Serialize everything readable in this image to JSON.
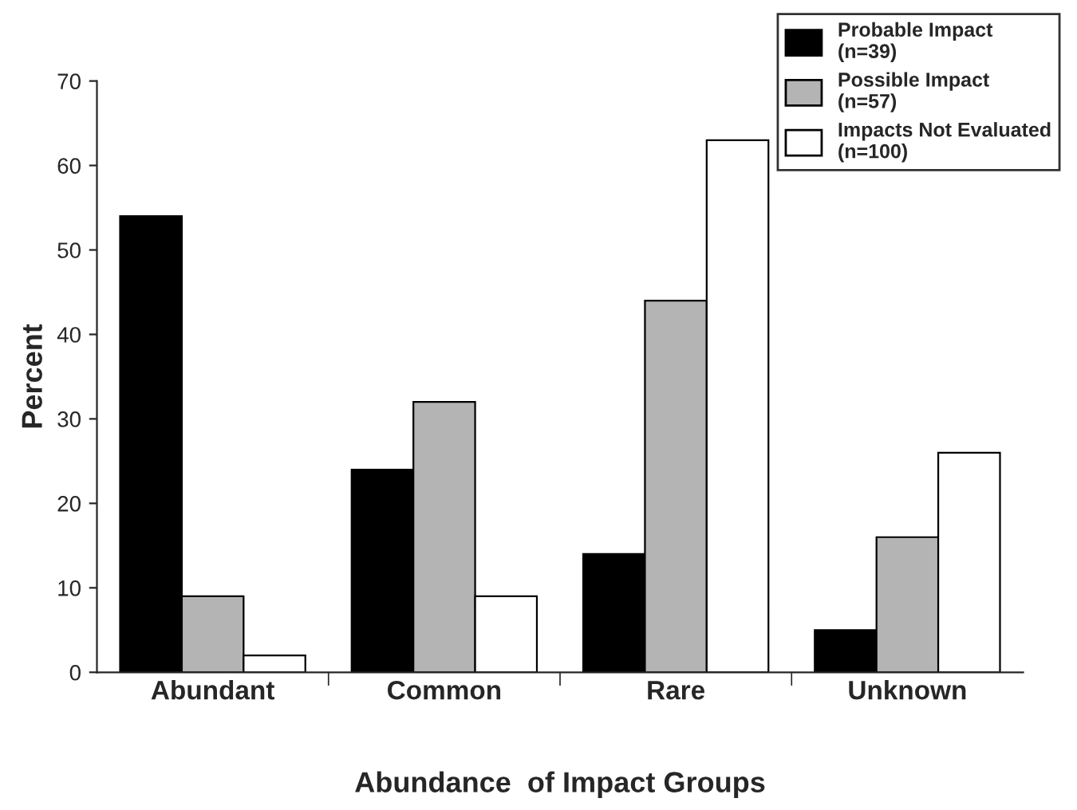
{
  "chart_data": {
    "type": "bar",
    "xlabel": "Abundance  of Impact Groups",
    "ylabel": "Percent",
    "categories": [
      "Abundant",
      "Common",
      "Rare",
      "Unknown"
    ],
    "series": [
      {
        "name": "Probable Impact\n(n=39)",
        "color": "#000000",
        "values": [
          54,
          24,
          14,
          5
        ]
      },
      {
        "name": "Possible Impact\n(n=57)",
        "color": "#b4b4b4",
        "values": [
          9,
          32,
          44,
          16
        ]
      },
      {
        "name": "Impacts Not Evaluated\n(n=100)",
        "color": "#ffffff",
        "values": [
          2,
          9,
          63,
          26
        ]
      }
    ],
    "ylim": [
      0,
      70
    ],
    "yticks": [
      0,
      10,
      20,
      30,
      40,
      50,
      60,
      70
    ],
    "grid": false,
    "legend": "top right"
  }
}
